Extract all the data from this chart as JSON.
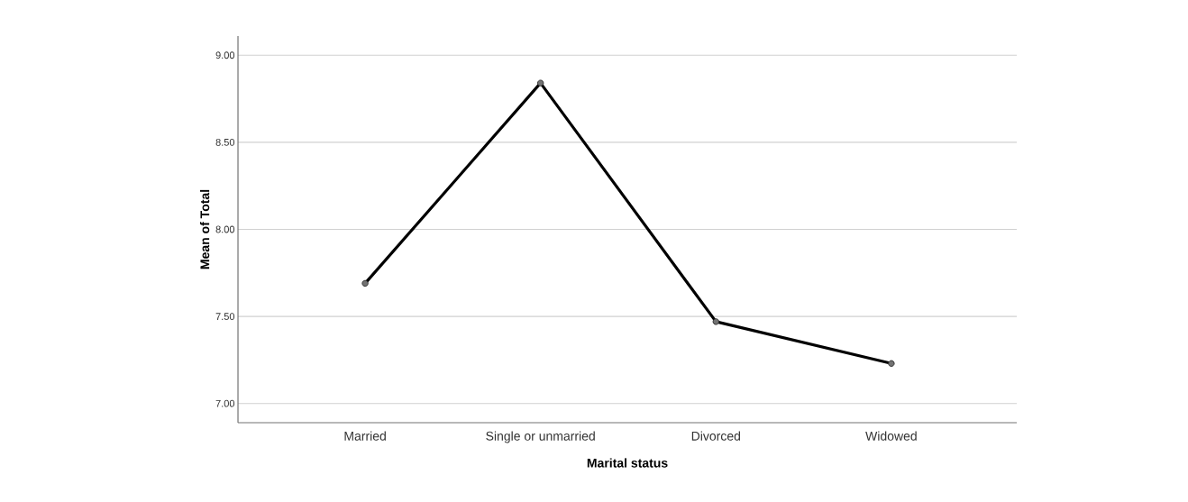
{
  "chart_data": {
    "type": "line",
    "xlabel": "Marital status",
    "ylabel": "Mean of Total",
    "categories": [
      "Married",
      "Single or unmarried",
      "Divorced",
      "Widowed"
    ],
    "values": [
      7.69,
      8.84,
      7.47,
      7.23
    ],
    "color": "#000000",
    "ylim": [
      6.89,
      9.11
    ],
    "yticks": [
      {
        "value": 7,
        "label": "7.00"
      },
      {
        "value": 7.5,
        "label": "7.50"
      },
      {
        "value": 8,
        "label": "8.00"
      },
      {
        "value": 8.5,
        "label": "8.50"
      },
      {
        "value": 9,
        "label": "9.00"
      }
    ],
    "grid": "y",
    "marker": "circle",
    "line_style": "solid"
  }
}
